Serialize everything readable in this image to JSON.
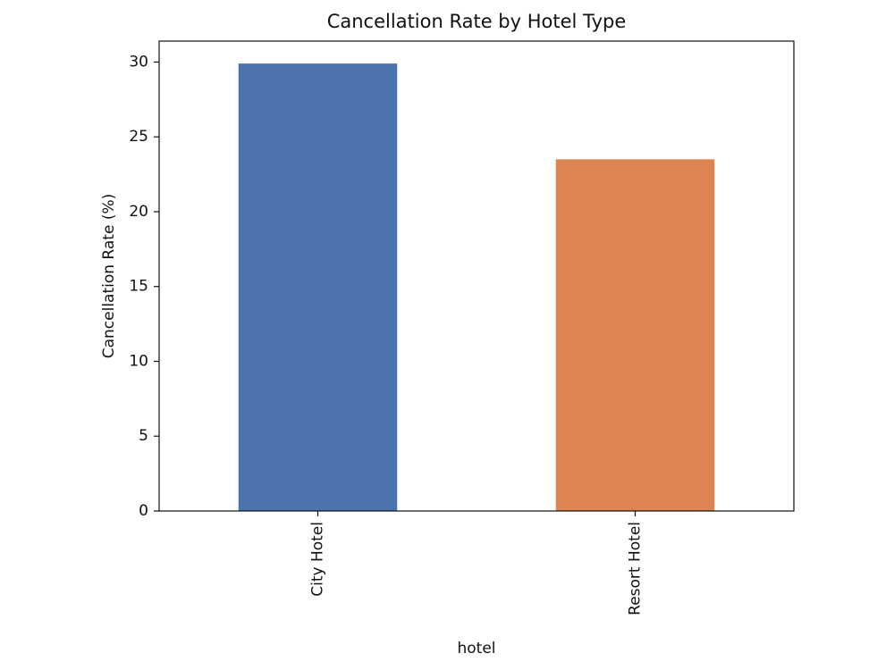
{
  "chart_data": {
    "type": "bar",
    "title": "Cancellation Rate by Hotel Type",
    "x_label": "hotel",
    "y_label": "Cancellation Rate (%)",
    "categories": [
      "City Hotel",
      "Resort Hotel"
    ],
    "values": [
      29.9,
      23.5
    ],
    "colors": [
      "#4c72b0",
      "#dd8452"
    ],
    "ylim": [
      0,
      31.4
    ],
    "yticks": [
      0,
      5,
      10,
      15,
      20,
      25,
      30
    ],
    "grid": false
  }
}
